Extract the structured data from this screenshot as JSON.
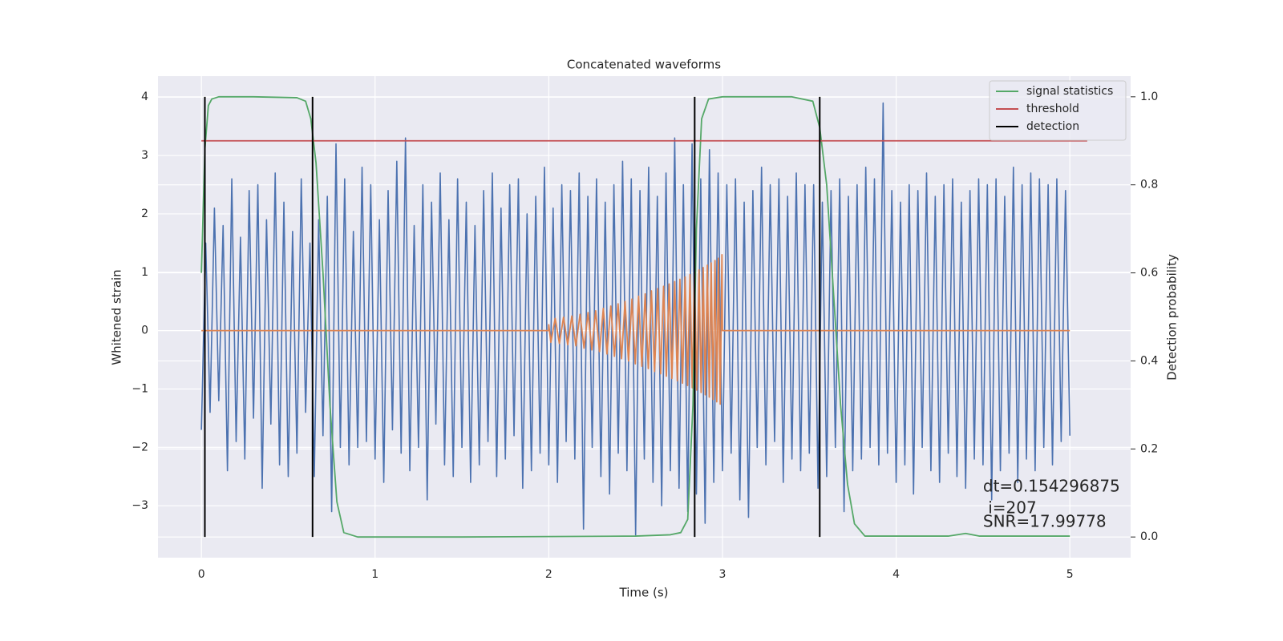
{
  "chart_data": {
    "type": "line",
    "title": "Concatenated waveforms",
    "xlabel": "Time (s)",
    "ylabel": "Whitened strain",
    "y2label": "Detection probability",
    "xlim": [
      -0.25,
      5.35
    ],
    "ylim": [
      -3.89,
      4.36
    ],
    "y2lim": [
      -0.047,
      1.047
    ],
    "xticks": [
      0,
      1,
      2,
      3,
      4,
      5
    ],
    "yticks": [
      {
        "value": -3,
        "label": "−3"
      },
      {
        "value": -2,
        "label": "−2"
      },
      {
        "value": -1,
        "label": "−1"
      },
      0,
      1,
      2,
      3,
      4
    ],
    "y2ticks": [
      {
        "value": 0,
        "label": "0.0"
      },
      0.2,
      0.4,
      0.6,
      0.8,
      {
        "value": 1,
        "label": "1.0"
      }
    ],
    "grid": true,
    "legend": "upper right",
    "annotations": [
      "dt=0.154296875",
      " i=207",
      "SNR=17.99778"
    ],
    "series": [
      {
        "color": "#4c72b0",
        "x": [
          0,
          0.025,
          0.05,
          0.075,
          0.1,
          0.125,
          0.15,
          0.175,
          0.2,
          0.225,
          0.25,
          0.275,
          0.3,
          0.325,
          0.35,
          0.375,
          0.4,
          0.425,
          0.45,
          0.475,
          0.5,
          0.525,
          0.55,
          0.575,
          0.6,
          0.625,
          0.65,
          0.675,
          0.7,
          0.725,
          0.75,
          0.775,
          0.8,
          0.825,
          0.85,
          0.875,
          0.9,
          0.925,
          0.95,
          0.975,
          1,
          1.025,
          1.05,
          1.075,
          1.1,
          1.125,
          1.15,
          1.175,
          1.2,
          1.225,
          1.25,
          1.275,
          1.3,
          1.325,
          1.35,
          1.375,
          1.4,
          1.425,
          1.45,
          1.475,
          1.5,
          1.525,
          1.55,
          1.575,
          1.6,
          1.625,
          1.65,
          1.675,
          1.7,
          1.725,
          1.75,
          1.775,
          1.8,
          1.825,
          1.85,
          1.875,
          1.9,
          1.925,
          1.95,
          1.975,
          2,
          2.025,
          2.05,
          2.075,
          2.1,
          2.125,
          2.15,
          2.175,
          2.2,
          2.225,
          2.25,
          2.275,
          2.3,
          2.325,
          2.35,
          2.375,
          2.4,
          2.425,
          2.45,
          2.475,
          2.5,
          2.525,
          2.55,
          2.575,
          2.6,
          2.625,
          2.65,
          2.675,
          2.7,
          2.725,
          2.75,
          2.775,
          2.8,
          2.825,
          2.85,
          2.875,
          2.9,
          2.925,
          2.95,
          2.975,
          3,
          3.025,
          3.05,
          3.075,
          3.1,
          3.125,
          3.15,
          3.175,
          3.2,
          3.225,
          3.25,
          3.275,
          3.3,
          3.325,
          3.35,
          3.375,
          3.4,
          3.425,
          3.45,
          3.475,
          3.5,
          3.525,
          3.55,
          3.575,
          3.6,
          3.625,
          3.65,
          3.675,
          3.7,
          3.725,
          3.75,
          3.775,
          3.8,
          3.825,
          3.85,
          3.875,
          3.9,
          3.925,
          3.95,
          3.975,
          4,
          4.025,
          4.05,
          4.075,
          4.1,
          4.125,
          4.15,
          4.175,
          4.2,
          4.225,
          4.25,
          4.275,
          4.3,
          4.325,
          4.35,
          4.375,
          4.4,
          4.425,
          4.45,
          4.475,
          4.5,
          4.525,
          4.55,
          4.575,
          4.6,
          4.625,
          4.65,
          4.675,
          4.7,
          4.725,
          4.75,
          4.775,
          4.8,
          4.825,
          4.85,
          4.875,
          4.9,
          4.925,
          4.95,
          4.975,
          5
        ],
        "values": [
          -1.7,
          1.5,
          -1.4,
          2.1,
          -1.2,
          1.8,
          -2.4,
          2.6,
          -1.9,
          1.6,
          -2.2,
          2.4,
          -1.5,
          2.5,
          -2.7,
          1.9,
          -1.6,
          2.7,
          -2.3,
          2.2,
          -2.5,
          1.7,
          -2.1,
          2.6,
          -1.4,
          1.5,
          -2.5,
          1.9,
          -1.8,
          2.3,
          -3.1,
          3.2,
          -2.0,
          2.6,
          -2.3,
          1.7,
          -2.0,
          2.8,
          -1.9,
          2.5,
          -2.2,
          1.9,
          -2.6,
          2.4,
          -1.7,
          2.9,
          -2.1,
          3.3,
          -2.4,
          1.8,
          -2.0,
          2.5,
          -2.9,
          2.2,
          -1.6,
          2.7,
          -2.3,
          1.9,
          -2.5,
          2.6,
          -2.0,
          2.2,
          -2.6,
          1.8,
          -2.3,
          2.4,
          -1.9,
          2.7,
          -2.5,
          2.1,
          -2.2,
          2.5,
          -1.8,
          2.6,
          -2.7,
          2.0,
          -2.4,
          2.3,
          -2.1,
          2.8,
          -2.3,
          2.1,
          -2.6,
          2.5,
          -1.9,
          2.4,
          -2.2,
          2.7,
          -3.4,
          2.3,
          -2.0,
          2.6,
          -2.5,
          2.2,
          -2.8,
          2.5,
          -2.1,
          2.9,
          -2.4,
          2.6,
          -3.5,
          2.4,
          -2.2,
          2.8,
          -2.6,
          2.3,
          -3.0,
          2.7,
          -2.4,
          3.3,
          -2.7,
          2.5,
          -3.1,
          3.2,
          -2.8,
          2.6,
          -3.3,
          3.1,
          -2.6,
          2.7,
          -2.4,
          2.5,
          -2.1,
          2.6,
          -2.9,
          2.2,
          -3.2,
          2.4,
          -2.0,
          2.8,
          -2.3,
          2.5,
          -1.9,
          2.6,
          -2.6,
          2.3,
          -2.2,
          2.7,
          -2.4,
          2.5,
          -2.1,
          2.5,
          -2.7,
          2.2,
          -2.5,
          2.4,
          -2.0,
          2.6,
          -3.1,
          2.3,
          -2.4,
          2.5,
          -2.2,
          2.8,
          -2.0,
          2.6,
          -2.3,
          3.9,
          -2.1,
          2.4,
          -2.6,
          2.2,
          -2.3,
          2.5,
          -2.8,
          2.4,
          -2.0,
          2.7,
          -2.4,
          2.3,
          -2.6,
          2.5,
          -2.1,
          2.6,
          -2.5,
          2.2,
          -2.7,
          2.4,
          -2.2,
          2.6,
          -2.3,
          2.5,
          -2.9,
          2.6,
          -2.4,
          2.3,
          -2.1,
          2.8,
          -2.6,
          2.5,
          -2.2,
          2.7,
          -2.4,
          2.6,
          -2.0,
          2.5,
          -2.3,
          2.6,
          -1.9,
          2.4,
          -1.8
        ]
      },
      {
        "color": "#dd8452",
        "x": [
          0,
          1.999,
          2.0,
          2.012,
          2.037,
          2.061,
          2.085,
          2.109,
          2.133,
          2.156,
          2.18,
          2.203,
          2.226,
          2.248,
          2.27,
          2.292,
          2.314,
          2.335,
          2.357,
          2.378,
          2.399,
          2.419,
          2.439,
          2.459,
          2.479,
          2.498,
          2.517,
          2.536,
          2.555,
          2.573,
          2.591,
          2.609,
          2.627,
          2.644,
          2.661,
          2.677,
          2.693,
          2.709,
          2.725,
          2.74,
          2.755,
          2.77,
          2.785,
          2.799,
          2.813,
          2.826,
          2.839,
          2.852,
          2.865,
          2.877,
          2.889,
          2.901,
          2.913,
          2.924,
          2.935,
          2.946,
          2.957,
          2.967,
          2.977,
          2.987,
          2.997,
          3.0,
          5.0
        ],
        "values": [
          0,
          0,
          0.1,
          -0.2,
          0.21,
          -0.22,
          0.23,
          -0.24,
          0.25,
          -0.26,
          0.28,
          -0.3,
          0.31,
          -0.33,
          0.34,
          -0.36,
          0.38,
          -0.4,
          0.42,
          -0.44,
          0.46,
          -0.48,
          0.5,
          -0.52,
          0.54,
          -0.57,
          0.59,
          -0.61,
          0.63,
          -0.65,
          0.68,
          -0.7,
          0.72,
          -0.74,
          0.76,
          -0.78,
          0.8,
          -0.82,
          0.84,
          -0.86,
          0.88,
          -0.9,
          0.92,
          -0.94,
          0.96,
          -0.98,
          1.0,
          -1.02,
          1.04,
          -1.06,
          1.08,
          -1.1,
          1.12,
          -1.14,
          1.16,
          -1.18,
          1.2,
          -1.22,
          1.24,
          -1.26,
          1.3,
          0,
          0
        ]
      },
      {
        "name": "signal statistics",
        "color": "#55a868",
        "axis": "y2",
        "x": [
          0,
          0.02,
          0.04,
          0.06,
          0.1,
          0.3,
          0.55,
          0.6,
          0.63,
          0.66,
          0.7,
          0.74,
          0.78,
          0.82,
          0.9,
          1.5,
          2.5,
          2.7,
          2.76,
          2.8,
          2.83,
          2.85,
          2.88,
          2.92,
          3.0,
          3.4,
          3.52,
          3.56,
          3.6,
          3.64,
          3.68,
          3.72,
          3.76,
          3.82,
          4.3,
          4.4,
          4.48,
          5.0
        ],
        "values": [
          0.6,
          0.88,
          0.98,
          0.995,
          1,
          1,
          0.998,
          0.99,
          0.95,
          0.85,
          0.6,
          0.3,
          0.08,
          0.01,
          0,
          0,
          0.002,
          0.005,
          0.01,
          0.04,
          0.3,
          0.7,
          0.95,
          0.995,
          1,
          1,
          0.99,
          0.93,
          0.8,
          0.55,
          0.3,
          0.12,
          0.03,
          0.002,
          0.002,
          0.008,
          0.002,
          0.002
        ]
      },
      {
        "name": "threshold",
        "color": "#c44e52",
        "axis": "y2",
        "x": [
          0,
          5.1
        ],
        "values": [
          0.9,
          0.9
        ]
      },
      {
        "name": "detection",
        "color": "#000000",
        "axis": "y2",
        "x": [
          0.02,
          0.64,
          2.84,
          3.56
        ],
        "ymin": 0,
        "ymax": 1
      }
    ]
  }
}
